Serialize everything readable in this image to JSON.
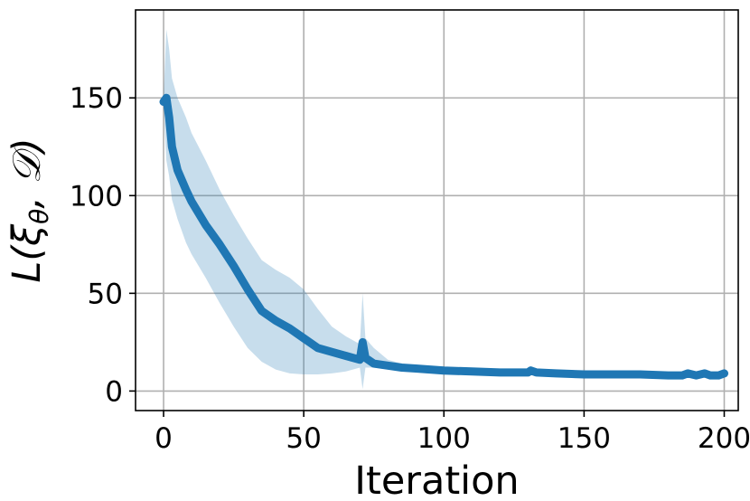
{
  "chart_data": {
    "type": "line",
    "title": "",
    "xlabel": "Iteration",
    "ylabel": "L(ξθ, 𝒟)",
    "ylabel_parts": {
      "main": "L(ξ",
      "sub": "θ",
      "rest": ", 𝒟)"
    },
    "xlim": [
      -10,
      205
    ],
    "ylim": [
      -10,
      195
    ],
    "xticks": [
      0,
      50,
      100,
      150,
      200
    ],
    "yticks": [
      0,
      50,
      100,
      150
    ],
    "xtick_labels": [
      "0",
      "50",
      "100",
      "150",
      "200"
    ],
    "ytick_labels": [
      "0",
      "50",
      "100",
      "150"
    ],
    "grid": true,
    "colors": {
      "line": "#1f77b4",
      "band": "#1f77b4",
      "grid": "#b0b0b0"
    },
    "series": [
      {
        "x": [
          0,
          1,
          2,
          3,
          5,
          8,
          10,
          15,
          20,
          25,
          30,
          35,
          40,
          45,
          50,
          55,
          60,
          65,
          70,
          71,
          72,
          75,
          80,
          85,
          90,
          100,
          110,
          120,
          130,
          131,
          133,
          140,
          150,
          160,
          170,
          180,
          185,
          187,
          190,
          193,
          195,
          198,
          200
        ],
        "y": [
          148,
          150,
          140,
          125,
          113,
          103,
          97,
          85,
          75,
          64,
          52,
          41,
          36,
          32,
          27,
          22,
          20,
          18,
          16,
          25,
          17,
          14,
          13,
          12,
          11.5,
          10.5,
          10,
          9.5,
          9.5,
          10.5,
          9.5,
          9,
          8.5,
          8.5,
          8.5,
          8,
          8,
          9,
          8,
          9,
          8,
          8,
          9
        ],
        "upper": [
          150,
          185,
          175,
          160,
          150,
          140,
          132,
          118,
          103,
          90,
          78,
          67,
          62,
          58,
          52,
          42,
          33,
          28,
          24,
          50,
          27,
          22,
          16,
          14,
          13,
          12,
          11,
          10.5,
          10.5,
          11.5,
          10.5,
          10,
          9.5,
          9.5,
          9.5,
          9,
          9,
          10,
          9,
          10,
          9,
          9,
          10
        ],
        "lower": [
          146,
          118,
          110,
          98,
          88,
          76,
          70,
          58,
          45,
          33,
          22,
          15,
          11,
          9,
          8.5,
          8.5,
          9,
          10,
          12,
          1,
          12,
          12,
          11,
          10.5,
          10,
          9.5,
          9,
          8.5,
          8.5,
          9.5,
          8.5,
          8,
          7.5,
          7.5,
          7.5,
          7,
          7,
          8,
          7,
          8,
          7,
          7,
          8
        ]
      }
    ]
  }
}
